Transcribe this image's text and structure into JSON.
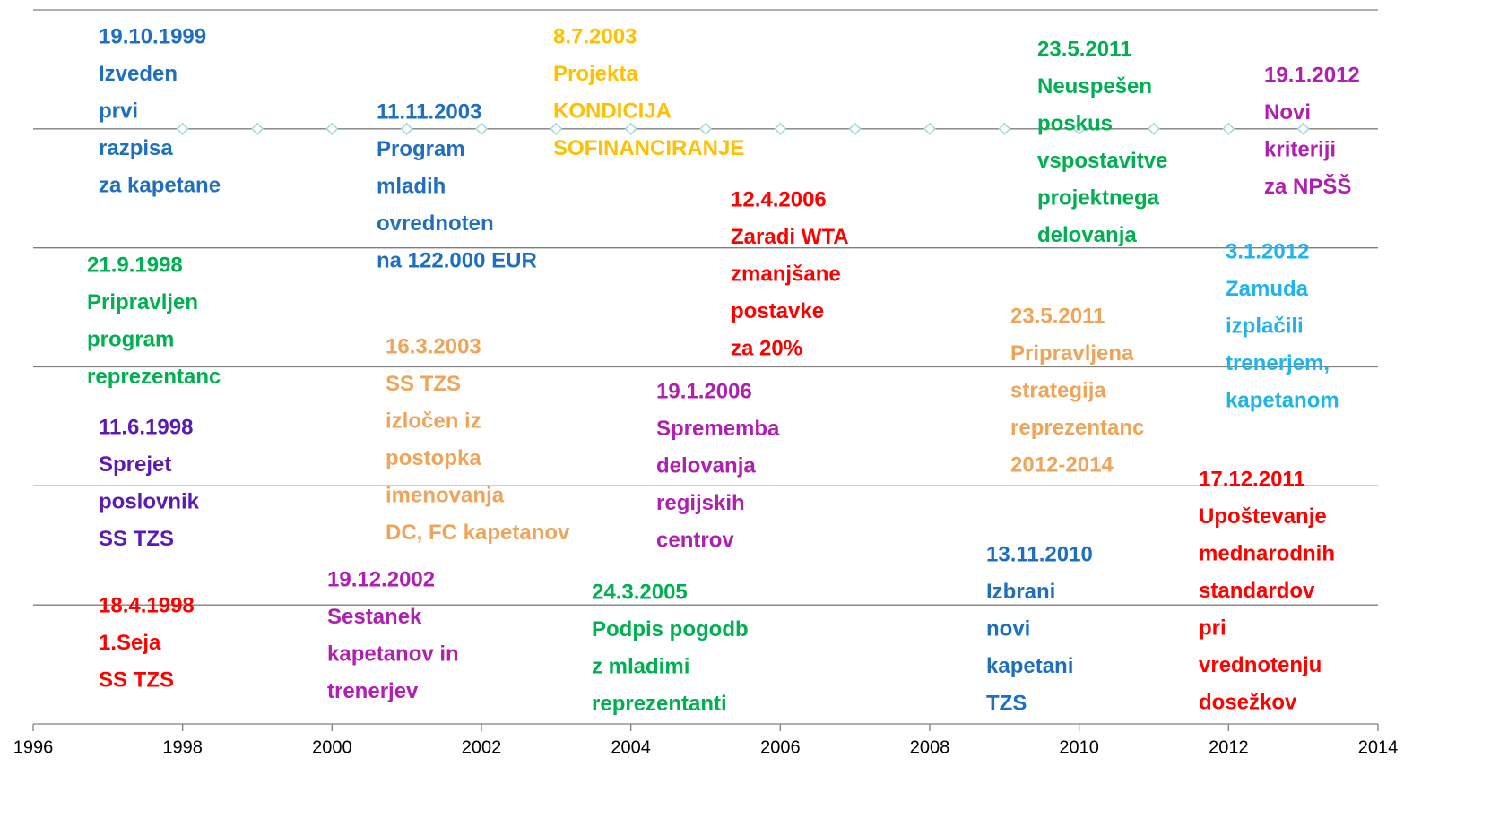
{
  "chart_data": {
    "type": "timeline",
    "xlim": [
      1996,
      2014
    ],
    "xticks": [
      1996,
      1998,
      2000,
      2002,
      2004,
      2006,
      2008,
      2010,
      2012,
      2014
    ],
    "ylim": [
      0,
      6
    ],
    "yticks": [
      1,
      2,
      3,
      4,
      5,
      6
    ],
    "grid": true,
    "series": [
      {
        "color": "#9fd8d8",
        "x": [
          1998,
          1999,
          2000,
          2001,
          2002,
          2003,
          2004,
          2005,
          2006,
          2007,
          2008,
          2009,
          2010,
          2011,
          2012,
          2013
        ],
        "values": [
          5,
          5,
          5,
          5,
          5,
          5,
          5,
          5,
          5,
          5,
          5,
          5,
          5,
          5,
          5,
          5
        ]
      }
    ],
    "annotations": [
      {
        "color": "#1f6fbf",
        "lines": [
          "19.10.1999",
          "Izveden",
          "prvi",
          "razpisa",
          "za kapetane"
        ]
      },
      {
        "color": "#ffc000",
        "lines": [
          "8.7.2003",
          "Projekta",
          "KONDICIJA",
          "SOFINANCIRANJE"
        ]
      },
      {
        "color": "#1f6fbf",
        "lines": [
          "11.11.2003",
          "Program",
          "mladih",
          "ovrednoten",
          "na 122.000 EUR"
        ]
      },
      {
        "color": "#00b050",
        "lines": [
          "23.5.2011",
          "Neuspešen",
          "poskus",
          "vspostavitve",
          "projektnega",
          "delovanja"
        ]
      },
      {
        "color": "#b020b0",
        "lines": [
          "19.1.2012",
          "Novi",
          "kriteriji",
          "za NPŠŠ"
        ]
      },
      {
        "color": "#ff0000",
        "lines": [
          "12.4.2006",
          "Zaradi WTA",
          "zmanjšane",
          "postavke",
          "za 20%"
        ]
      },
      {
        "color": "#1fb4ec",
        "lines": [
          "3.1.2012",
          "Zamuda",
          "izplačili",
          "trenerjem,",
          "kapetanom"
        ]
      },
      {
        "color": "#00b050",
        "lines": [
          "21.9.1998",
          "Pripravljen",
          "program",
          "reprezentanc"
        ]
      },
      {
        "color": "#eea55a",
        "lines": [
          "16.3.2003",
          "SS TZS",
          "izločen iz",
          "postopka",
          "imenovanja",
          "DC, FC kapetanov"
        ]
      },
      {
        "color": "#eea55a",
        "lines": [
          "23.5.2011",
          "Pripravljena",
          "strategija",
          "reprezentanc",
          "2012-2014"
        ]
      },
      {
        "color": "#b020b0",
        "lines": [
          "19.1.2006",
          "Sprememba",
          "delovanja",
          "regijskih",
          "centrov"
        ]
      },
      {
        "color": "#5a1ab4",
        "lines": [
          "11.6.1998",
          "Sprejet",
          "poslovnik",
          "SS TZS"
        ]
      },
      {
        "color": "#ff0000",
        "lines": [
          "17.12.2011",
          "Upoštevanje",
          "mednarodnih",
          "standardov",
          "pri",
          "vrednotenju",
          "dosežkov"
        ]
      },
      {
        "color": "#1f6fbf",
        "lines": [
          "13.11.2010",
          "Izbrani",
          "novi",
          "kapetani",
          "TZS"
        ]
      },
      {
        "color": "#b020b0",
        "lines": [
          "19.12.2002",
          "Sestanek",
          "kapetanov in",
          "trenerjev"
        ]
      },
      {
        "color": "#00b050",
        "lines": [
          "24.3.2005",
          "Podpis pogodb",
          "z mladimi",
          "reprezentanti"
        ]
      },
      {
        "color": "#ff0000",
        "lines": [
          "18.4.1998",
          "1.Seja",
          "SS TZS"
        ]
      }
    ]
  }
}
